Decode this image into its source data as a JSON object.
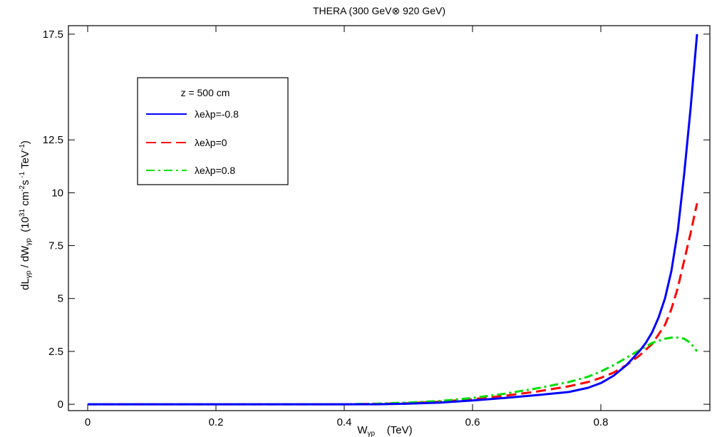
{
  "chart_data": {
    "type": "line",
    "title": "THERA (300 GeV⊗ 920 GeV)",
    "xlabel": "W_γp (TeV)",
    "ylabel": "dL_γp / dW_γp (10^31 cm^-2 s^-1 TeV^-1)",
    "xlim": [
      -0.03,
      0.97
    ],
    "ylim": [
      -0.3,
      17.9
    ],
    "x_ticks": [
      0,
      0.2,
      0.4,
      0.6,
      0.8
    ],
    "x_tick_labels": [
      "0",
      "0.2",
      "0.4",
      "0.6",
      "0.8"
    ],
    "y_ticks": [
      0,
      2.5,
      5,
      7.5,
      10,
      12.5,
      17.5
    ],
    "y_tick_labels": [
      "0",
      "2.5",
      "5",
      "7.5",
      "10",
      "12.5",
      "17.5"
    ],
    "grid": false,
    "legend": {
      "placement": "top-left",
      "header": "z = 500 cm",
      "entries": [
        "λeλp=-0.8",
        "λeλp=0",
        "λeλp=0.8"
      ]
    },
    "series": [
      {
        "name": "λeλp=-0.8",
        "color": "#0000ff",
        "dash": "solid",
        "x": [
          0,
          0.1,
          0.2,
          0.3,
          0.4,
          0.45,
          0.5,
          0.55,
          0.6,
          0.65,
          0.7,
          0.75,
          0.78,
          0.8,
          0.82,
          0.84,
          0.86,
          0.87,
          0.88,
          0.89,
          0.9,
          0.91,
          0.92,
          0.93,
          0.94,
          0.95
        ],
        "y": [
          0,
          0,
          0,
          0,
          0,
          0,
          0.03,
          0.08,
          0.18,
          0.3,
          0.43,
          0.58,
          0.78,
          1.0,
          1.35,
          1.85,
          2.5,
          2.9,
          3.4,
          4.1,
          5.0,
          6.3,
          8.2,
          10.9,
          14.0,
          17.5
        ]
      },
      {
        "name": "λeλp=0",
        "color": "#ff0000",
        "dash": "dashed",
        "x": [
          0,
          0.1,
          0.2,
          0.3,
          0.4,
          0.45,
          0.5,
          0.55,
          0.6,
          0.65,
          0.7,
          0.75,
          0.78,
          0.8,
          0.82,
          0.84,
          0.86,
          0.88,
          0.9,
          0.91,
          0.92,
          0.93,
          0.94,
          0.95
        ],
        "y": [
          0,
          0,
          0,
          0,
          0,
          0.02,
          0.05,
          0.12,
          0.24,
          0.4,
          0.6,
          0.85,
          1.05,
          1.25,
          1.5,
          1.85,
          2.3,
          2.85,
          3.75,
          4.5,
          5.5,
          6.8,
          8.1,
          9.5
        ]
      },
      {
        "name": "λeλp=0.8",
        "color": "#00dd00",
        "dash": "dashdot",
        "x": [
          0,
          0.1,
          0.2,
          0.3,
          0.4,
          0.45,
          0.5,
          0.55,
          0.6,
          0.65,
          0.7,
          0.75,
          0.78,
          0.8,
          0.82,
          0.84,
          0.86,
          0.88,
          0.9,
          0.91,
          0.92,
          0.93,
          0.94,
          0.95
        ],
        "y": [
          0,
          0,
          0,
          0,
          0,
          0.03,
          0.08,
          0.16,
          0.3,
          0.5,
          0.75,
          1.05,
          1.3,
          1.55,
          1.85,
          2.2,
          2.55,
          2.9,
          3.1,
          3.15,
          3.15,
          3.1,
          2.9,
          2.5
        ]
      }
    ]
  }
}
